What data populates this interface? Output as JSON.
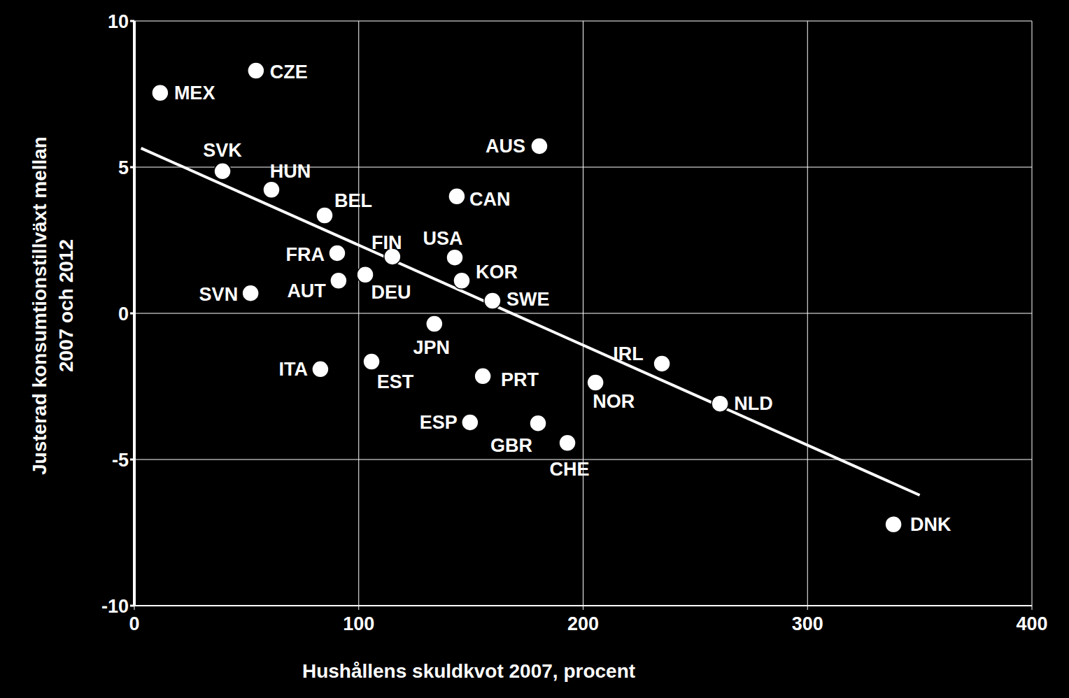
{
  "chart_data": {
    "type": "scatter",
    "x_label": "Hushållens skuldkvot 2007, procent",
    "y_label": [
      "Justerad konsumtionstillväxt mellan",
      "2007 och 2012"
    ],
    "labels": [
      "MEX",
      "CZE",
      "SVK",
      "HUN",
      "BEL",
      "FRA",
      "FIN",
      "USA",
      "AUS",
      "CAN",
      "SVN",
      "AUT",
      "DEU",
      "KOR",
      "SWE",
      "JPN",
      "ITA",
      "EST",
      "PRT",
      "ESP",
      "GBR",
      "CHE",
      "NOR",
      "IRL",
      "NLD",
      "DNK"
    ],
    "x": [
      11.5,
      54.2,
      39.3,
      61.1,
      84.8,
      90.4,
      115,
      142.8,
      180.5,
      143.7,
      51.8,
      91,
      102.9,
      145.9,
      159.6,
      133.7,
      82.9,
      105.7,
      155.3,
      149.6,
      179.9,
      193,
      205.5,
      235.1,
      261,
      338.3
    ],
    "values": [
      7.54,
      8.3,
      4.86,
      4.23,
      3.35,
      2.06,
      1.94,
      1.91,
      5.72,
      4.0,
      0.69,
      1.12,
      1.32,
      1.12,
      0.43,
      -0.36,
      -1.91,
      -1.65,
      -2.15,
      -3.73,
      -3.76,
      -4.43,
      -2.37,
      -1.72,
      -3.09,
      -7.22
    ],
    "trend_line": {
      "x": [
        3,
        350
      ],
      "values": [
        5.65,
        -6.22
      ]
    },
    "color": "#ffffff",
    "xlim": [
      0,
      400
    ],
    "xticks": [
      0,
      100,
      200,
      300,
      400
    ],
    "ylim": [
      -10,
      10
    ],
    "yticks": [
      -10,
      -5,
      0,
      5,
      10
    ],
    "grid": true
  }
}
